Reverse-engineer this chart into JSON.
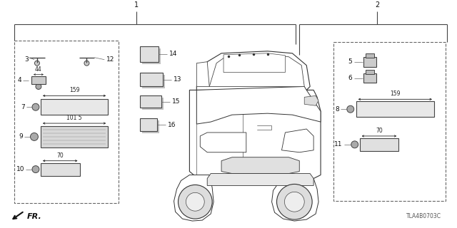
{
  "bg_color": "#ffffff",
  "part_number": "TLA4B0703C",
  "fig_width": 6.4,
  "fig_height": 3.2,
  "dpi": 100,
  "line_color": "#444444",
  "text_color": "#111111",
  "dim_color": "#222222",
  "box_dash": "--"
}
